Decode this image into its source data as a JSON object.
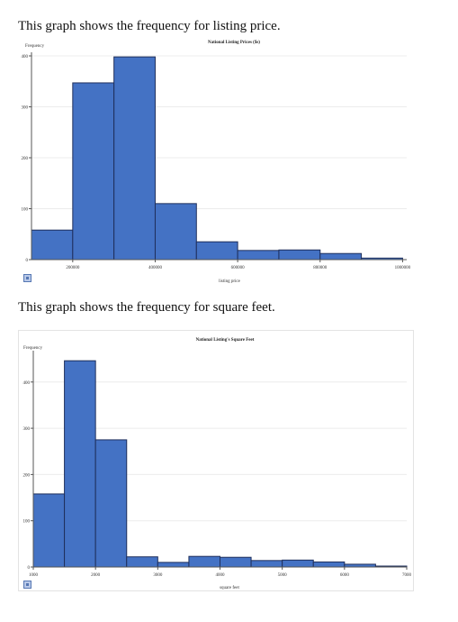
{
  "captions": {
    "price": "This graph shows the frequency for listing price.",
    "sqft": "This graph shows the frequency for square  feet."
  },
  "colors": {
    "bar": "#4472c4",
    "bar_edge": "#1f2f5c"
  },
  "chart_data": [
    {
      "type": "bar",
      "title": "National Listing Prices ($s)",
      "xlabel": "listing price",
      "ylabel": "Frequency",
      "bins": [
        {
          "from": 100000,
          "to": 200000,
          "value": 58
        },
        {
          "from": 200000,
          "to": 300000,
          "value": 347
        },
        {
          "from": 300000,
          "to": 400000,
          "value": 398
        },
        {
          "from": 400000,
          "to": 500000,
          "value": 110
        },
        {
          "from": 500000,
          "to": 600000,
          "value": 35
        },
        {
          "from": 600000,
          "to": 700000,
          "value": 18
        },
        {
          "from": 700000,
          "to": 800000,
          "value": 19
        },
        {
          "from": 800000,
          "to": 900000,
          "value": 12
        },
        {
          "from": 900000,
          "to": 1000000,
          "value": 3
        }
      ],
      "xlim": [
        100000,
        1010000
      ],
      "ylim": [
        0,
        400
      ],
      "x_ticks": [
        200000,
        400000,
        600000,
        800000,
        1000000
      ],
      "x_tick_labels": [
        "200000",
        "400000",
        "600000",
        "800000",
        "1000000"
      ],
      "y_ticks": [
        0,
        100,
        200,
        300,
        400
      ],
      "y_tick_labels": [
        "0",
        "100",
        "200",
        "300",
        "400"
      ],
      "grid": true
    },
    {
      "type": "bar",
      "title": "National Listing's Square Feet",
      "xlabel": "square feet",
      "ylabel": "Frequency",
      "bins": [
        {
          "from": 1000,
          "to": 1500,
          "value": 158
        },
        {
          "from": 1500,
          "to": 2000,
          "value": 446
        },
        {
          "from": 2000,
          "to": 2500,
          "value": 275
        },
        {
          "from": 2500,
          "to": 3000,
          "value": 22
        },
        {
          "from": 3000,
          "to": 3500,
          "value": 10
        },
        {
          "from": 3500,
          "to": 4000,
          "value": 23
        },
        {
          "from": 4000,
          "to": 4500,
          "value": 21
        },
        {
          "from": 4500,
          "to": 5000,
          "value": 14
        },
        {
          "from": 5000,
          "to": 5500,
          "value": 15
        },
        {
          "from": 5500,
          "to": 6000,
          "value": 11
        },
        {
          "from": 6000,
          "to": 6500,
          "value": 6
        },
        {
          "from": 6500,
          "to": 7000,
          "value": 2
        }
      ],
      "xlim": [
        1000,
        7000
      ],
      "ylim": [
        0,
        460
      ],
      "x_ticks": [
        1000,
        2000,
        3000,
        4000,
        5000,
        6000,
        7000
      ],
      "x_tick_labels": [
        "1000",
        "2000",
        "3000",
        "4000",
        "5000",
        "6000",
        "7000"
      ],
      "y_ticks": [
        0,
        100,
        200,
        300,
        400
      ],
      "y_tick_labels": [
        "0",
        "100",
        "200",
        "300",
        "400"
      ],
      "grid": true
    }
  ]
}
